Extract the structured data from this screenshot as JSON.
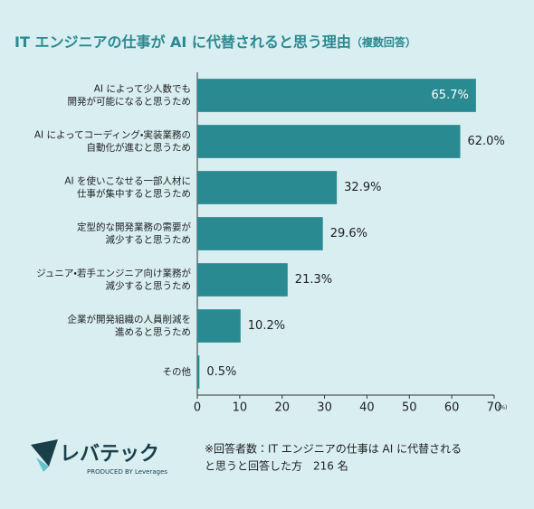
{
  "chart_data": {
    "type": "barh",
    "title": "IT エンジニアの仕事が AI に代替されると思う理由",
    "subtitle": "（複数回答）",
    "categories": [
      "AI によって少人数でも\n開発が可能になると思うため",
      "AI によってコーディング・実装業務の\n自動化が進むと思うため",
      "AI を使いこなせる一部人材に\n仕事が集中すると思うため",
      "定型的な開発業務の需要が\n減少すると思うため",
      "ジュニア・若手エンジニア向け業務が\n減少すると思うため",
      "企業が開発組織の人員削減を\n進めると思うため",
      "その他"
    ],
    "values": [
      65.7,
      62.0,
      32.9,
      29.6,
      21.3,
      10.2,
      0.5
    ],
    "value_labels": [
      "65.7%",
      "62.0%",
      "32.9%",
      "29.6%",
      "21.3%",
      "10.2%",
      "0.5%"
    ],
    "color": "#2a8a91",
    "xlim": [
      0,
      70
    ],
    "xticks": [
      0,
      10,
      20,
      30,
      40,
      50,
      60,
      70
    ],
    "xlabel": "(%)",
    "note": [
      "※回答者数：IT エンジニアの仕事は AI に代替される",
      "と思うと回答した方　216 名"
    ]
  },
  "logo": {
    "name": "レバテック",
    "tagline": "PRODUCED BY Leverages"
  }
}
